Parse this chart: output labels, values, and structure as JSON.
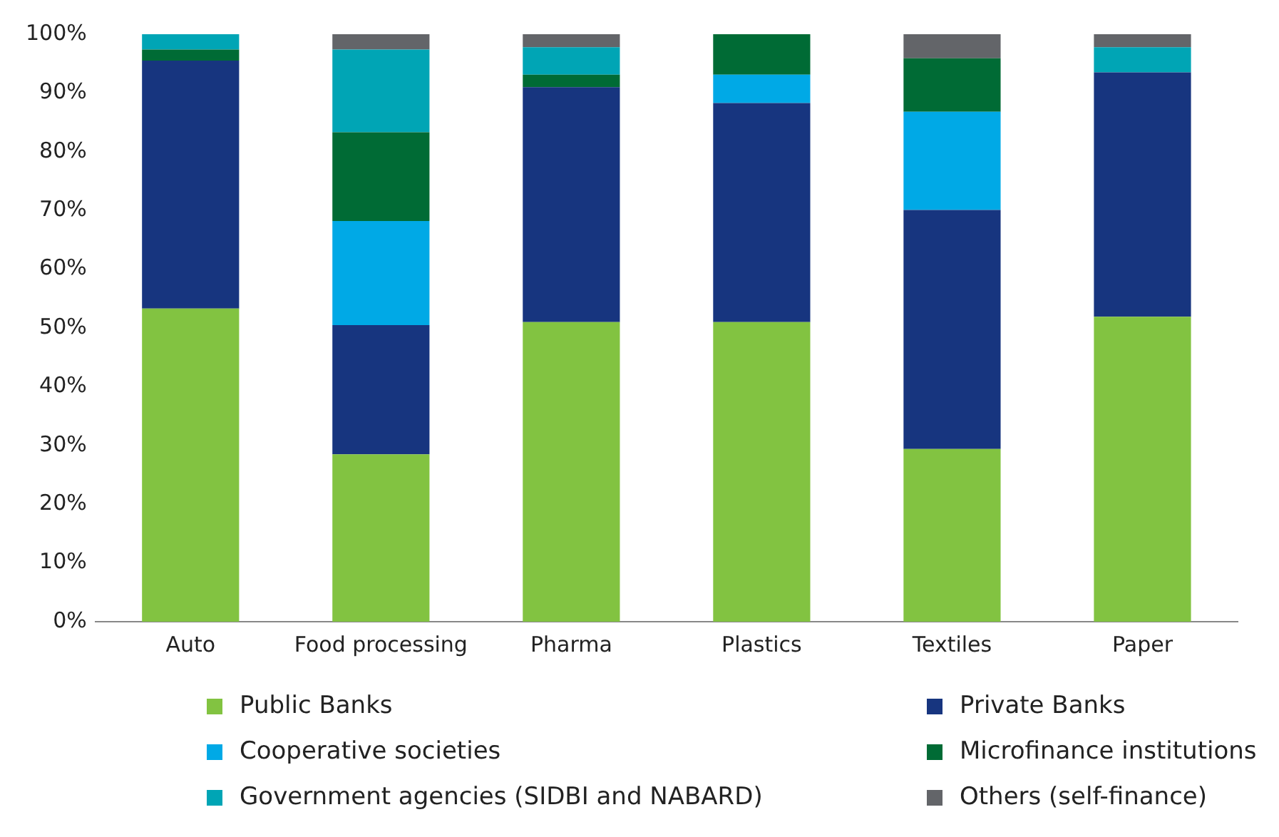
{
  "chart_data": {
    "type": "bar",
    "stacked": true,
    "categories": [
      "Auto",
      "Food processing",
      "Pharma",
      "Plastics",
      "Textiles",
      "Paper"
    ],
    "series": [
      {
        "name": "Public Banks",
        "color": "#82c341",
        "values": [
          53.3,
          28.5,
          51,
          51,
          29.4,
          51.9
        ]
      },
      {
        "name": "Private Banks",
        "color": "#17357f",
        "values": [
          42.2,
          22,
          40,
          37.3,
          40.7,
          41.6
        ]
      },
      {
        "name": "Cooperative societies",
        "color": "#00a9e6",
        "values": [
          0,
          17.7,
          0,
          4.8,
          16.7,
          0
        ]
      },
      {
        "name": "Microfinance institutions",
        "color": "#006b35",
        "values": [
          1.9,
          15.1,
          2.1,
          6.9,
          9.1,
          0
        ]
      },
      {
        "name": "Government agencies (SIDBI and NABARD)",
        "color": "#00a5b5",
        "values": [
          2.6,
          14.1,
          4.7,
          0,
          0,
          4.3
        ]
      },
      {
        "name": "Others (self-finance)",
        "color": "#636569",
        "values": [
          0,
          2.6,
          2.2,
          0,
          4.1,
          2.2
        ]
      }
    ],
    "ylim": [
      0,
      100
    ],
    "yticks": [
      {
        "value": 0,
        "label": "0%"
      },
      {
        "value": 10,
        "label": "10%"
      },
      {
        "value": 20,
        "label": "20%"
      },
      {
        "value": 30,
        "label": "30%"
      },
      {
        "value": 40,
        "label": "40%"
      },
      {
        "value": 50,
        "label": "50%"
      },
      {
        "value": 60,
        "label": "60%"
      },
      {
        "value": 70,
        "label": "70%"
      },
      {
        "value": 80,
        "label": "80%"
      },
      {
        "value": 90,
        "label": "90%"
      },
      {
        "value": 100,
        "label": "100%"
      }
    ],
    "grid": false,
    "legend": "bottom"
  }
}
